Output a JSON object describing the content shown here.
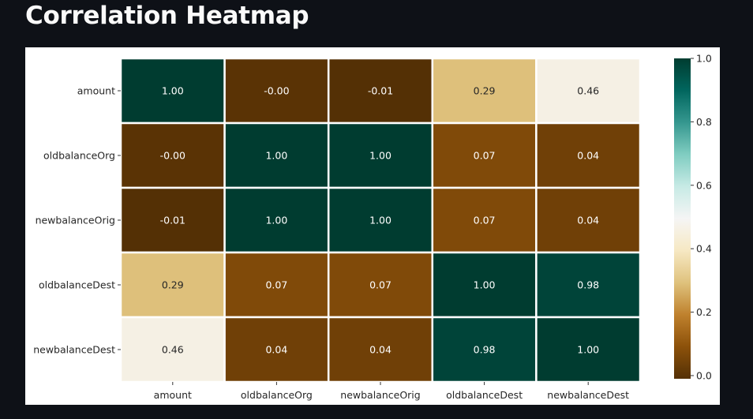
{
  "page": {
    "title": "Correlation Heatmap"
  },
  "chart_data": {
    "type": "heatmap",
    "title": "",
    "row_labels": [
      "amount",
      "oldbalanceOrg",
      "newbalanceOrig",
      "oldbalanceDest",
      "newbalanceDest"
    ],
    "col_labels": [
      "amount",
      "oldbalanceOrg",
      "newbalanceOrig",
      "oldbalanceDest",
      "newbalanceDest"
    ],
    "values": [
      [
        1.0,
        -0.0,
        -0.01,
        0.29,
        0.46
      ],
      [
        -0.0,
        1.0,
        1.0,
        0.07,
        0.04
      ],
      [
        -0.01,
        1.0,
        1.0,
        0.07,
        0.04
      ],
      [
        0.29,
        0.07,
        0.07,
        1.0,
        0.98
      ],
      [
        0.46,
        0.04,
        0.04,
        0.98,
        1.0
      ]
    ],
    "cell_labels": [
      [
        "1.00",
        "-0.00",
        "-0.01",
        "0.29",
        "0.46"
      ],
      [
        "-0.00",
        "1.00",
        "1.00",
        "0.07",
        "0.04"
      ],
      [
        "-0.01",
        "1.00",
        "1.00",
        "0.07",
        "0.04"
      ],
      [
        "0.29",
        "0.07",
        "0.07",
        "1.00",
        "0.98"
      ],
      [
        "0.46",
        "0.04",
        "0.04",
        "0.98",
        "1.00"
      ]
    ],
    "colormap": "BrBG",
    "vmin": -0.01,
    "vmax": 1.0,
    "colorbar": {
      "ticks": [
        0.0,
        0.2,
        0.4,
        0.6,
        0.8,
        1.0
      ],
      "tick_labels": [
        "0.0",
        "0.2",
        "0.4",
        "0.6",
        "0.8",
        "1.0"
      ]
    },
    "annotations": true,
    "colors": {
      "low": "#543005",
      "high": "#003c30",
      "mid": "#f5f5f5",
      "cell_border": "#ffffff",
      "background": "#0e1117"
    }
  }
}
